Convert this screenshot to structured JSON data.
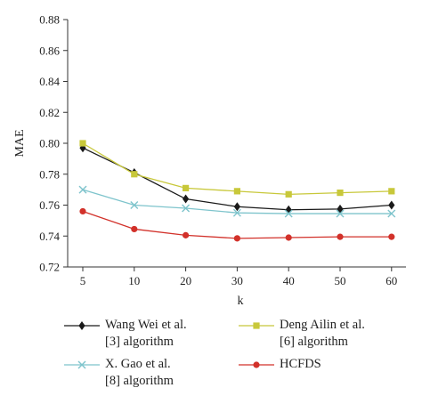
{
  "chart_data": {
    "type": "line",
    "categories": [
      "5",
      "10",
      "20",
      "30",
      "40",
      "50",
      "60"
    ],
    "xlabel": "k",
    "ylabel": "MAE",
    "ylim": [
      0.72,
      0.88
    ],
    "yticks": [
      "0.72",
      "0.74",
      "0.76",
      "0.78",
      "0.80",
      "0.82",
      "0.84",
      "0.86",
      "0.88"
    ],
    "grid": false,
    "legend_position": "bottom",
    "series": [
      {
        "name": "Wang Wei et al. [3] algorithm",
        "name_lines": [
          "Wang Wei et al.",
          "[3] algorithm"
        ],
        "color": "#1a1a1a",
        "marker": "diamond",
        "values": [
          0.797,
          0.781,
          0.764,
          0.759,
          0.757,
          0.7575,
          0.76
        ]
      },
      {
        "name": "Deng Ailin et al. [6] algorithm",
        "name_lines": [
          "Deng Ailin et al.",
          "[6] algorithm"
        ],
        "color": "#c8c83a",
        "marker": "square",
        "values": [
          0.8,
          0.78,
          0.771,
          0.769,
          0.767,
          0.768,
          0.769
        ]
      },
      {
        "name": "X. Gao et al. [8] algorithm",
        "name_lines": [
          "X. Gao et al.",
          "[8] algorithm"
        ],
        "color": "#7ec4cc",
        "marker": "x",
        "values": [
          0.77,
          0.76,
          0.758,
          0.755,
          0.7545,
          0.7545,
          0.7545
        ]
      },
      {
        "name": "HCFDS",
        "name_lines": [
          "HCFDS"
        ],
        "color": "#d2312a",
        "marker": "circle",
        "values": [
          0.756,
          0.7445,
          0.7405,
          0.7385,
          0.739,
          0.7395,
          0.7395
        ]
      }
    ]
  }
}
